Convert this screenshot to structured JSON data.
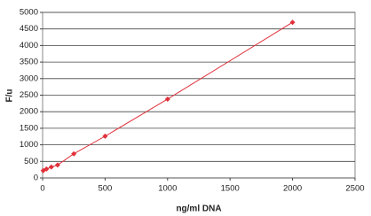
{
  "chart_data": {
    "type": "line",
    "x_label": "ng/ml DNA",
    "y_label": "F/u",
    "x": [
      5,
      31,
      70,
      120,
      250,
      500,
      1000,
      2000
    ],
    "values": [
      220,
      270,
      330,
      390,
      730,
      1260,
      2380,
      4700
    ],
    "color": "#e0303a",
    "markers": true,
    "xlim": [
      0,
      2500
    ],
    "xticks": [
      0,
      500,
      1000,
      1500,
      2000,
      2500
    ],
    "ylim": [
      0,
      5000
    ],
    "yticks": [
      0,
      500,
      1000,
      1500,
      2000,
      2500,
      3000,
      3500,
      4000,
      4500,
      5000
    ],
    "grid": true
  }
}
